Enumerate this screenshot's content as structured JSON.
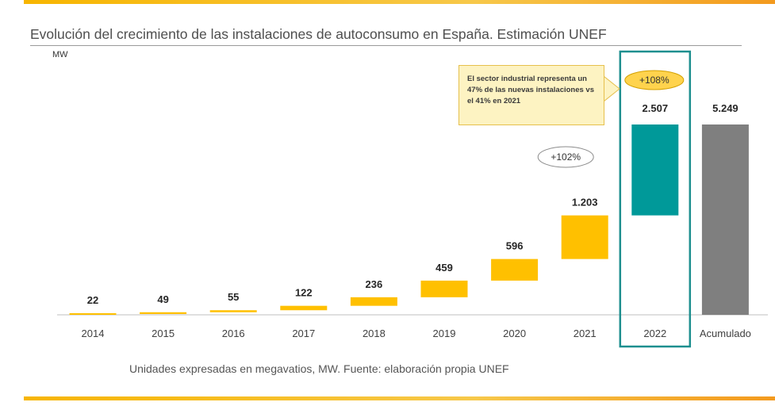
{
  "title": "Evolución del crecimiento de las instalaciones de autoconsumo en España. Estimación UNEF",
  "footnote": "Unidades expresadas en megavatios, MW. Fuente: elaboración propia UNEF",
  "callout": "El sector industrial representa un 47% de las nuevas instalaciones vs el 41% en 2021",
  "badges": [
    {
      "year": "2021",
      "text": "+102%"
    },
    {
      "year": "2022",
      "text": "+108%"
    }
  ],
  "colors": {
    "bar": "#ffc000",
    "highlight": "#009999",
    "total": "#7f7f7f",
    "highlight_frame": "#1e8f8f",
    "accent_stripe": "#f7b500"
  },
  "chart_data": {
    "type": "bar",
    "subtype": "waterfall",
    "ylabel": "MW",
    "categories": [
      "2014",
      "2015",
      "2016",
      "2017",
      "2018",
      "2019",
      "2020",
      "2021",
      "2022",
      "Acumulado"
    ],
    "values": [
      22,
      49,
      55,
      122,
      236,
      459,
      596,
      1203,
      2507,
      5249
    ],
    "labels": [
      "22",
      "49",
      "55",
      "122",
      "236",
      "459",
      "596",
      "1.203",
      "2.507",
      "5.249"
    ],
    "highlight": "2022",
    "total": "Acumulado",
    "ylim": [
      0,
      5249
    ],
    "grid": false,
    "legend": "none"
  }
}
